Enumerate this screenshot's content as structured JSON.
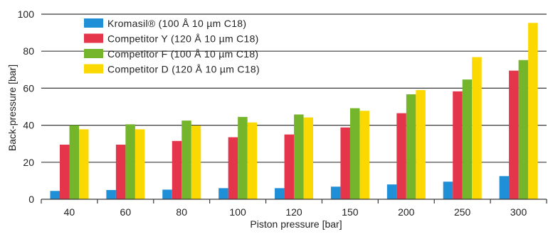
{
  "chart_data": {
    "type": "bar",
    "xlabel": "Piston pressure [bar]",
    "ylabel": "Back-pressure [bar]",
    "ylim": [
      0,
      100
    ],
    "yticks": [
      0,
      20,
      40,
      60,
      80,
      100
    ],
    "grid": "horizontal",
    "legend_position": "top-left",
    "categories": [
      "40",
      "60",
      "80",
      "100",
      "120",
      "150",
      "200",
      "250",
      "300"
    ],
    "series": [
      {
        "name": "Kromasil® (100 Å 10 µm C18)",
        "color": "#1f8fd8",
        "values": [
          4.5,
          5,
          5.2,
          6,
          6,
          6.8,
          8,
          9.5,
          12.5
        ]
      },
      {
        "name": "Competitor Y (120 Å 10 µm C18)",
        "color": "#e5354a",
        "values": [
          29.5,
          29.5,
          31.5,
          33.5,
          35,
          38.8,
          46.5,
          58.3,
          69.5
        ]
      },
      {
        "name": "Competitor F (100 Å 10 µm C18)",
        "color": "#75b52b",
        "values": [
          40,
          40.5,
          42.5,
          44.5,
          45.8,
          49.2,
          56.7,
          64.7,
          75.2
        ]
      },
      {
        "name": "Competitor D (120 Å 10 µm C18)",
        "color": "#fbd800",
        "values": [
          37.8,
          37.8,
          39.8,
          41.5,
          44.2,
          47.8,
          59,
          76.8,
          95.3
        ]
      }
    ]
  }
}
